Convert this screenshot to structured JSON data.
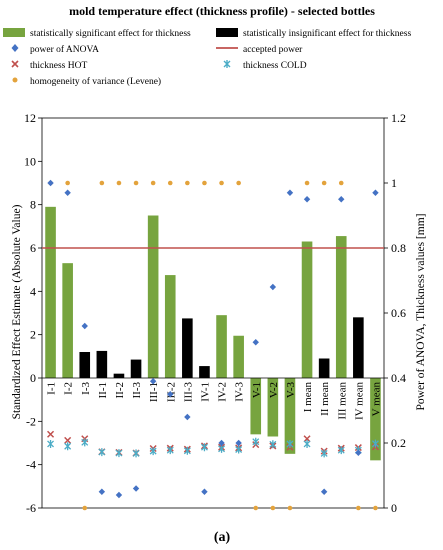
{
  "chart_data": {
    "type": "bar",
    "title": "mold temperature effect (thickness profile) - selected bottles",
    "ylabel_left": "Standardized Effect Estimate (Absolute Value)",
    "ylabel_right": "Power of ANOVA, Thickness values [mm]",
    "subfigure_label": "(a)",
    "ylim_left": [
      -6,
      12
    ],
    "ylim_right": [
      0,
      1.2
    ],
    "yticks_left": [
      -6,
      -4,
      -2,
      0,
      2,
      4,
      6,
      8,
      10,
      12
    ],
    "yticks_right": [
      0,
      0.2,
      0.4,
      0.6,
      0.8,
      1,
      1.2
    ],
    "ytick_labels_left": [
      "-6",
      "-4",
      "-2",
      "0",
      "2",
      "4",
      "6",
      "8",
      "10",
      "12"
    ],
    "ytick_labels_right": [
      "0",
      "0.2",
      "0.4",
      "0.6",
      "0.8",
      "1",
      "1.2"
    ],
    "grid": false,
    "legend_placement": "top",
    "colors": {
      "significant": "#77a43f",
      "insignificant": "#000000",
      "anova": "#4472c4",
      "accepted": "#c0504d",
      "hot": "#c0504d",
      "cold": "#4bacc6",
      "levene": "#e3a33c"
    },
    "legend": {
      "significant": "statistically significant effect for thickness",
      "insignificant": "statistically insignificant effect for thickness",
      "anova": "power of ANOVA",
      "accepted": "accepted power",
      "hot": "thickness HOT",
      "cold": "thickness COLD",
      "levene": "homogeneity of variance (Levene)"
    },
    "categories": [
      "I-1",
      "I-2",
      "I-3",
      "II-1",
      "II-2",
      "II-3",
      "III-1",
      "III-2",
      "III-3",
      "IV-1",
      "IV-2",
      "IV-3",
      "V-1",
      "V-2",
      "V-3",
      "I mean",
      "II mean",
      "III mean",
      "IV mean",
      "V mean"
    ],
    "effect_values": [
      7.9,
      5.3,
      1.2,
      1.25,
      0.2,
      0.85,
      7.5,
      4.75,
      2.75,
      0.55,
      2.9,
      1.95,
      -2.6,
      -2.7,
      -3.5,
      6.3,
      0.9,
      6.55,
      2.8,
      -3.8
    ],
    "significant": [
      true,
      true,
      false,
      false,
      false,
      false,
      true,
      true,
      false,
      false,
      true,
      true,
      true,
      true,
      true,
      true,
      false,
      true,
      false,
      true
    ],
    "power_anova": [
      1.0,
      0.97,
      0.56,
      0.05,
      0.04,
      0.06,
      0.39,
      0.35,
      0.28,
      0.05,
      0.2,
      0.2,
      0.51,
      0.68,
      0.97,
      0.95,
      0.05,
      0.95,
      0.17,
      0.97
    ],
    "accepted_power": 0.8,
    "thickness_hot": [
      0.227,
      0.208,
      0.213,
      0.173,
      0.171,
      0.169,
      0.183,
      0.184,
      0.181,
      0.191,
      0.187,
      0.185,
      0.195,
      0.191,
      0.187,
      0.213,
      0.175,
      0.184,
      0.186,
      0.188
    ],
    "thickness_cold": [
      0.197,
      0.19,
      0.202,
      0.172,
      0.169,
      0.168,
      0.175,
      0.178,
      0.176,
      0.187,
      0.182,
      0.18,
      0.204,
      0.196,
      0.197,
      0.197,
      0.168,
      0.178,
      0.178,
      0.198
    ],
    "levene": [
      1.0,
      1.0,
      0.0,
      1.0,
      1.0,
      1.0,
      1.0,
      1.0,
      1.0,
      1.0,
      1.0,
      1.0,
      0.0,
      0.0,
      0.0,
      1.0,
      1.0,
      1.0,
      0.0,
      0.0
    ]
  }
}
